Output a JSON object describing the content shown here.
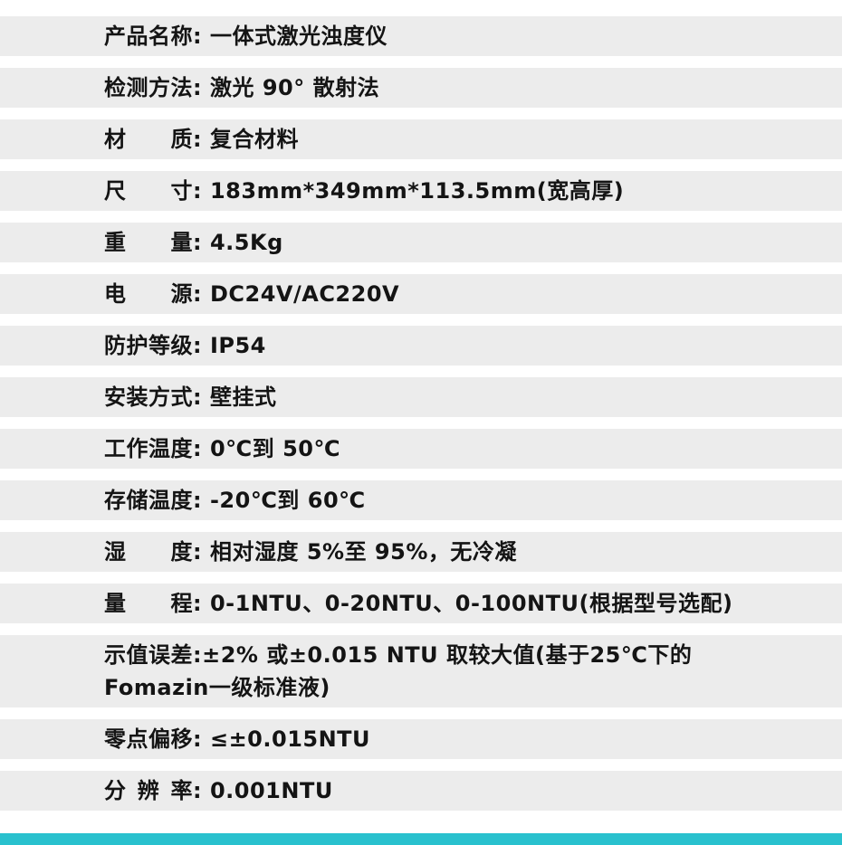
{
  "page": {
    "title": "一体式激光浊度仪产品参数",
    "colon": ":",
    "background_color": "#ffffff",
    "row_stripe_color": "#ececec",
    "text_color": "#141414",
    "accent_bar_color": "#29c1ce"
  },
  "spec_table": {
    "rows": [
      {
        "label": "产品名称",
        "value": " 一体式激光浊度仪"
      },
      {
        "label": "检测方法",
        "value": " 激光 90° 散射法"
      },
      {
        "label": "材质",
        "value": " 复合材料"
      },
      {
        "label": "尺寸",
        "value": " 183mm*349mm*113.5mm(宽高厚)"
      },
      {
        "label": "重量",
        "value": " 4.5Kg"
      },
      {
        "label": "电源",
        "value": " DC24V/AC220V"
      },
      {
        "label": "防护等级",
        "value": " IP54"
      },
      {
        "label": "安装方式",
        "value": " 壁挂式"
      },
      {
        "label": "工作温度",
        "value": " 0℃到 50℃"
      },
      {
        "label": "存储温度",
        "value": " -20℃到 60℃"
      },
      {
        "label": "湿度",
        "value": " 相对湿度 5%至 95%，无冷凝"
      },
      {
        "label": "量程",
        "value": " 0-1NTU、0-20NTU、0-100NTU(根据型号选配)"
      },
      {
        "label": "示值误差",
        "value": "±2% 或±0.015 NTU 取较大值(基于25℃下的Fomazin一级标准液)"
      },
      {
        "label": "零点偏移",
        "value": " ≤±0.015NTU"
      },
      {
        "label": "分辨率",
        "value": " 0.001NTU"
      }
    ]
  }
}
